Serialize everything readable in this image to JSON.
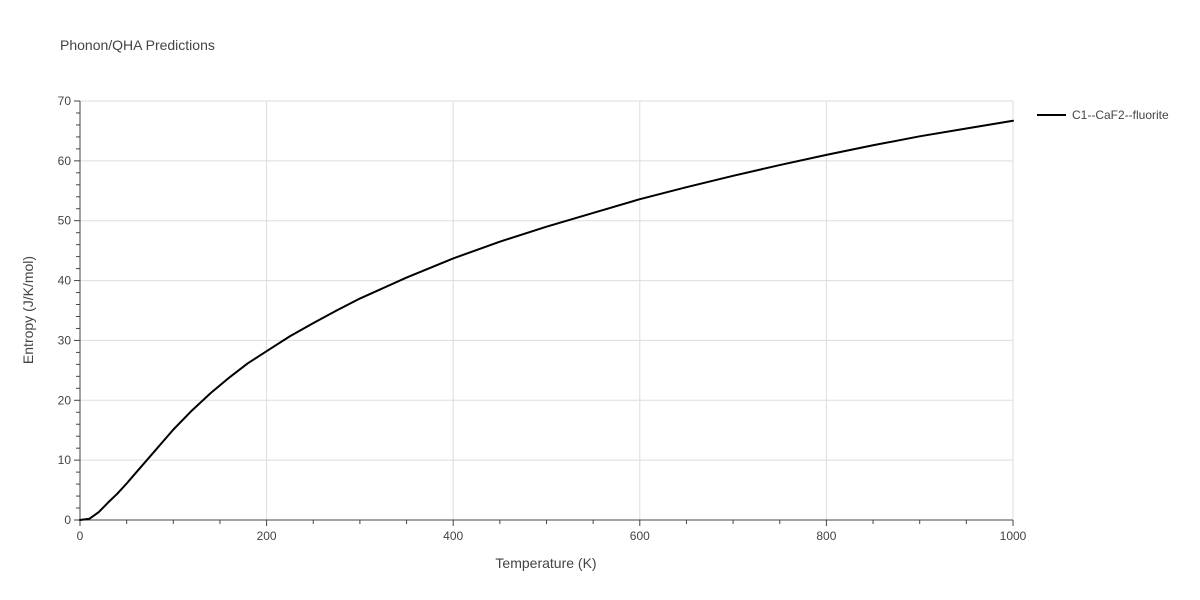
{
  "chart_data": {
    "type": "line",
    "title": "Phonon/QHA Predictions",
    "xlabel": "Temperature (K)",
    "ylabel": "Entropy (J/K/mol)",
    "xlim": [
      0,
      1000
    ],
    "ylim": [
      0,
      70
    ],
    "xticks": [
      0,
      200,
      400,
      600,
      800,
      1000
    ],
    "yticks": [
      0,
      10,
      20,
      30,
      40,
      50,
      60,
      70
    ],
    "grid": true,
    "legend_position": "top-right",
    "series": [
      {
        "name": "C1--CaF2--fluorite",
        "color": "#000000",
        "x": [
          0,
          10,
          20,
          30,
          40,
          50,
          60,
          70,
          80,
          90,
          100,
          120,
          140,
          160,
          180,
          200,
          225,
          250,
          275,
          300,
          350,
          400,
          450,
          500,
          550,
          600,
          650,
          700,
          750,
          800,
          850,
          900,
          950,
          1000
        ],
        "y": [
          0,
          0.2,
          1.3,
          2.9,
          4.4,
          6.1,
          7.9,
          9.7,
          11.5,
          13.3,
          15.1,
          18.3,
          21.2,
          23.8,
          26.2,
          28.2,
          30.7,
          32.9,
          35.0,
          37.0,
          40.5,
          43.7,
          46.5,
          49.0,
          51.3,
          53.6,
          55.6,
          57.5,
          59.3,
          61.0,
          62.6,
          64.1,
          65.4,
          66.7
        ]
      }
    ]
  }
}
